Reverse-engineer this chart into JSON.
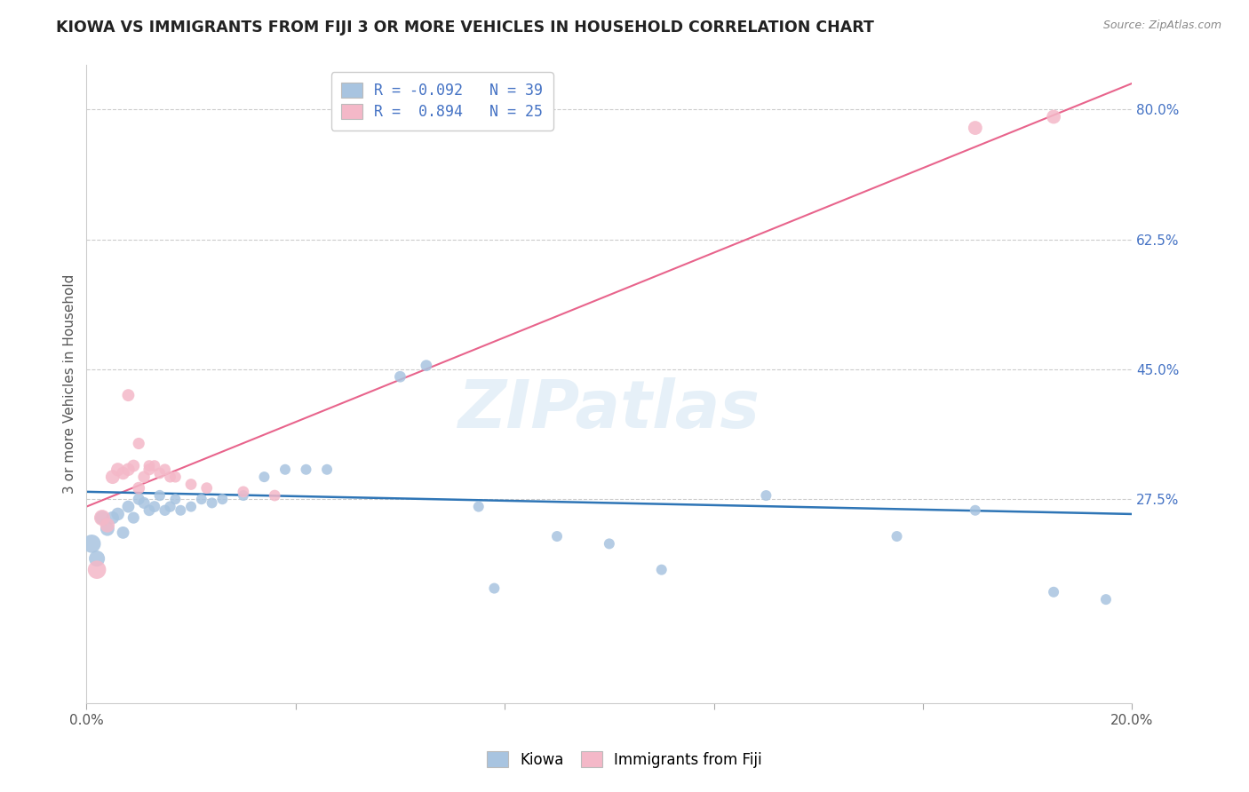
{
  "title": "KIOWA VS IMMIGRANTS FROM FIJI 3 OR MORE VEHICLES IN HOUSEHOLD CORRELATION CHART",
  "source": "Source: ZipAtlas.com",
  "ylabel": "3 or more Vehicles in Household",
  "watermark": "ZIPatlas",
  "x_min": 0.0,
  "x_max": 0.2,
  "y_min": 0.0,
  "y_max": 0.86,
  "x_ticks": [
    0.0,
    0.04,
    0.08,
    0.12,
    0.16,
    0.2
  ],
  "x_tick_labels": [
    "0.0%",
    "",
    "",
    "",
    "",
    "20.0%"
  ],
  "y_ticks": [
    0.275,
    0.45,
    0.625,
    0.8
  ],
  "y_tick_labels": [
    "27.5%",
    "45.0%",
    "62.5%",
    "80.0%"
  ],
  "legend_labels": [
    "Kiowa",
    "Immigrants from Fiji"
  ],
  "kiowa_R": "-0.092",
  "kiowa_N": "39",
  "fiji_R": "0.894",
  "fiji_N": "25",
  "kiowa_color": "#a8c4e0",
  "kiowa_line_color": "#2e75b6",
  "fiji_color": "#f4b8c8",
  "fiji_line_color": "#e8648c",
  "kiowa_x": [
    0.001,
    0.002,
    0.003,
    0.004,
    0.005,
    0.006,
    0.007,
    0.008,
    0.009,
    0.01,
    0.011,
    0.012,
    0.013,
    0.014,
    0.015,
    0.016,
    0.017,
    0.018,
    0.02,
    0.022,
    0.024,
    0.026,
    0.03,
    0.034,
    0.038,
    0.042,
    0.046,
    0.06,
    0.065,
    0.075,
    0.09,
    0.1,
    0.11,
    0.13,
    0.155,
    0.17,
    0.185,
    0.195,
    0.078
  ],
  "kiowa_y": [
    0.215,
    0.195,
    0.25,
    0.235,
    0.25,
    0.255,
    0.23,
    0.265,
    0.25,
    0.275,
    0.27,
    0.26,
    0.265,
    0.28,
    0.26,
    0.265,
    0.275,
    0.26,
    0.265,
    0.275,
    0.27,
    0.275,
    0.28,
    0.305,
    0.315,
    0.315,
    0.315,
    0.44,
    0.455,
    0.265,
    0.225,
    0.215,
    0.18,
    0.28,
    0.225,
    0.26,
    0.15,
    0.14,
    0.155
  ],
  "fiji_x": [
    0.002,
    0.003,
    0.004,
    0.005,
    0.006,
    0.007,
    0.008,
    0.009,
    0.01,
    0.011,
    0.012,
    0.013,
    0.015,
    0.017,
    0.02,
    0.023,
    0.03,
    0.036,
    0.008,
    0.01,
    0.012,
    0.014,
    0.016,
    0.17,
    0.185
  ],
  "fiji_y": [
    0.18,
    0.25,
    0.24,
    0.305,
    0.315,
    0.31,
    0.315,
    0.32,
    0.29,
    0.305,
    0.315,
    0.32,
    0.315,
    0.305,
    0.295,
    0.29,
    0.285,
    0.28,
    0.415,
    0.35,
    0.32,
    0.31,
    0.305,
    0.775,
    0.79
  ],
  "kiowa_dot_sizes": [
    220,
    170,
    130,
    130,
    110,
    110,
    100,
    100,
    90,
    90,
    90,
    85,
    85,
    80,
    80,
    80,
    75,
    75,
    75,
    75,
    75,
    75,
    75,
    75,
    75,
    75,
    75,
    85,
    85,
    75,
    75,
    75,
    75,
    75,
    75,
    75,
    75,
    75,
    75
  ],
  "fiji_dot_sizes": [
    220,
    170,
    140,
    130,
    120,
    110,
    110,
    100,
    100,
    95,
    90,
    85,
    85,
    85,
    85,
    85,
    85,
    85,
    100,
    90,
    85,
    85,
    85,
    130,
    130
  ],
  "fiji_line_x0": 0.0,
  "fiji_line_y0": 0.265,
  "fiji_line_x1": 0.2,
  "fiji_line_y1": 0.835,
  "kiowa_line_x0": 0.0,
  "kiowa_line_y0": 0.285,
  "kiowa_line_x1": 0.2,
  "kiowa_line_y1": 0.255
}
